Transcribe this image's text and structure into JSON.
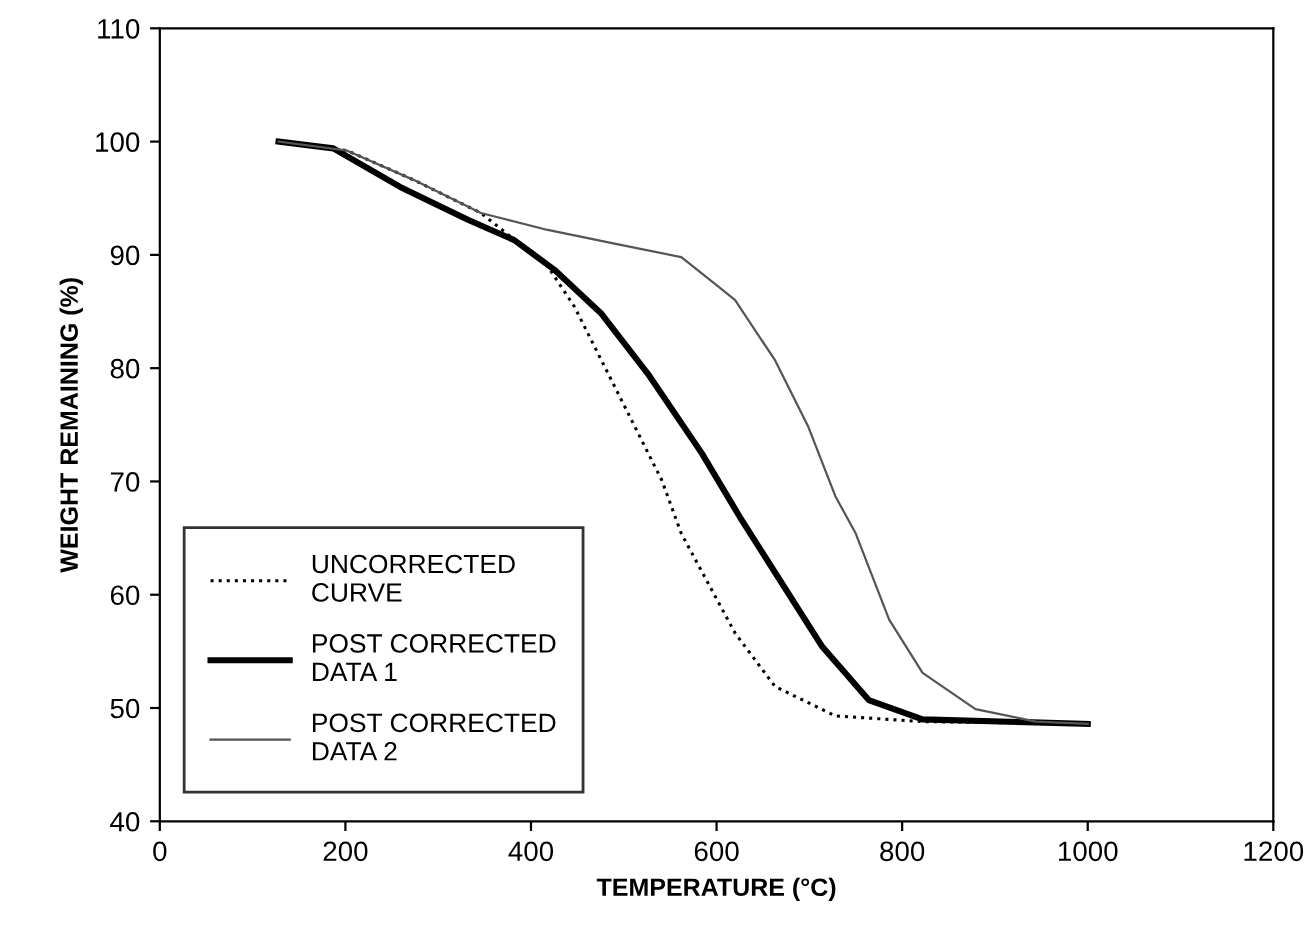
{
  "chart_data": {
    "type": "line",
    "xlabel": "TEMPERATURE (°C)",
    "ylabel": "WEIGHT REMAINING (%)",
    "xlim": [
      0,
      1200
    ],
    "xticks": [
      0,
      200,
      400,
      600,
      800,
      1000,
      1200
    ],
    "ylim": [
      40,
      110
    ],
    "yticks": [
      40,
      50,
      60,
      70,
      80,
      90,
      100,
      110
    ],
    "grid": false,
    "legend": "bottom left",
    "marker": "none",
    "series": [
      {
        "name": "UNCORRECTED\nCURVE",
        "color": "#000000",
        "line_style": "dotted",
        "x": [
          128,
          202,
          274,
          346,
          418,
          447,
          490,
          541,
          562,
          620,
          663,
          728,
          822,
          1000
        ],
        "values": [
          100,
          99.2,
          96.6,
          93.7,
          89.0,
          85.4,
          78.4,
          70.1,
          65.4,
          56.6,
          51.9,
          49.3,
          48.8,
          48.6
        ]
      },
      {
        "name": "POST CORRECTED\nDATA 1",
        "color": "#000000",
        "line_style": "solid",
        "x": [
          128,
          187,
          259,
          332,
          382,
          425,
          476,
          526,
          584,
          627,
          714,
          764,
          822,
          1000
        ],
        "values": [
          100,
          99.4,
          96.0,
          93.1,
          91.3,
          88.7,
          84.8,
          79.5,
          72.5,
          66.6,
          55.4,
          50.7,
          49.0,
          48.6
        ]
      },
      {
        "name": "POST CORRECTED\nDATA 2",
        "color": "#555555",
        "line_style": "solid",
        "x": [
          128,
          202,
          274,
          346,
          418,
          490,
          562,
          602,
          620,
          663,
          699,
          728,
          750,
          786,
          822,
          879,
          944,
          1000
        ],
        "values": [
          100,
          99.2,
          96.6,
          93.7,
          92.2,
          91.0,
          89.8,
          87.2,
          86.0,
          80.7,
          74.8,
          68.7,
          65.4,
          57.8,
          53.1,
          49.9,
          48.8,
          48.6
        ]
      }
    ]
  }
}
